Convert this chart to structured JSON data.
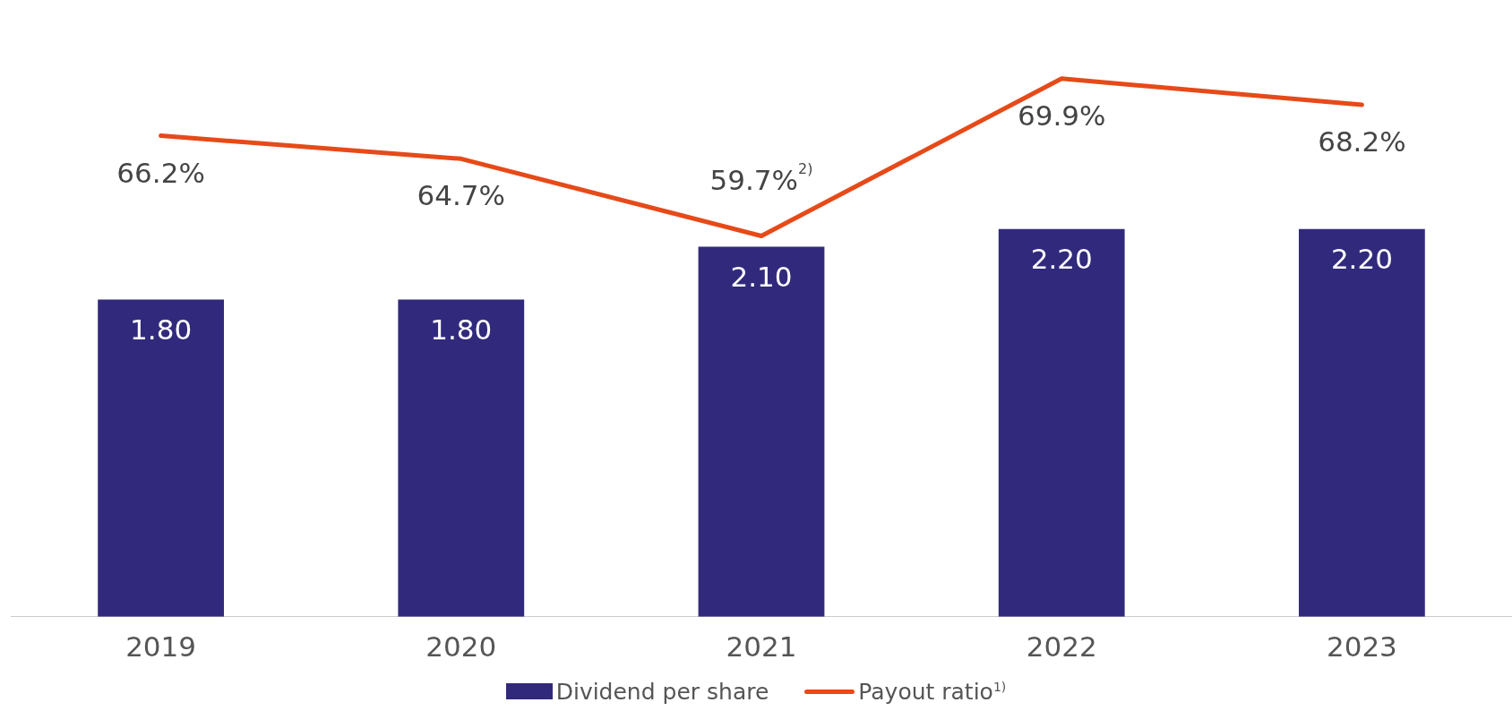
{
  "chart_data": {
    "type": "bar",
    "categories": [
      "2019",
      "2020",
      "2021",
      "2022",
      "2023"
    ],
    "series": [
      {
        "name": "Dividend per share",
        "color": "#312a7c",
        "values": [
          1.8,
          1.8,
          2.1,
          2.2,
          2.2
        ],
        "value_labels": [
          "1.80",
          "1.80",
          "2.10",
          "2.20",
          "2.20"
        ]
      },
      {
        "name": "Payout ratio$^{1)}$",
        "type": "line",
        "axis": "y2",
        "color": "#e64a19",
        "values": [
          66.2,
          64.7,
          59.7,
          69.9,
          68.2
        ],
        "value_labels": [
          "66.2%",
          "64.7%",
          "59.7%$^{2)}$",
          "69.9%",
          "68.2%"
        ]
      }
    ],
    "grid": false,
    "legend": "bottom",
    "tick_labels": "x"
  }
}
